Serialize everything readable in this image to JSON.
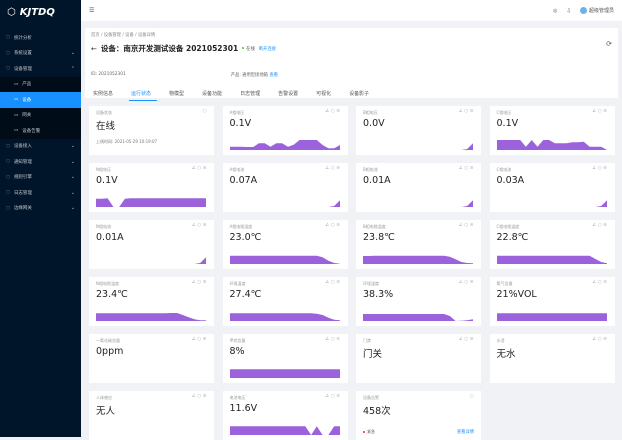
{
  "brand": "KJTDQ",
  "sidebar": {
    "items": [
      {
        "label": "统计分析",
        "icon": "chart-icon"
      },
      {
        "label": "系统设置",
        "icon": "gear-icon",
        "expandable": true
      },
      {
        "label": "设备管理",
        "icon": "device-icon",
        "expanded": true,
        "children": [
          {
            "label": "产品",
            "icon": "monitor-icon"
          },
          {
            "label": "设备",
            "icon": "monitor-icon",
            "active": true
          },
          {
            "label": "网关",
            "icon": "gateway-icon"
          },
          {
            "label": "设备告警",
            "icon": "bell-icon"
          }
        ]
      },
      {
        "label": "设备接入",
        "icon": "plug-icon",
        "expandable": true
      },
      {
        "label": "通知管理",
        "icon": "notify-icon",
        "expandable": true
      },
      {
        "label": "规则引擎",
        "icon": "rule-icon",
        "expandable": true
      },
      {
        "label": "日志管理",
        "icon": "log-icon",
        "expandable": true
      },
      {
        "label": "边缘网关",
        "icon": "edge-icon",
        "expandable": true
      }
    ]
  },
  "topbar": {
    "user": "超级管理员"
  },
  "header": {
    "breadcrumb": [
      "首页",
      "设备管理",
      "设备",
      "设备详情"
    ],
    "title": "设备：南京开发测试设备 2021052301",
    "status": "在线",
    "action": "断开连接",
    "id_label": "ID: 2021052301",
    "product_label": "产品: 通用型接地箱",
    "product_link": "查看",
    "tabs": [
      "实例信息",
      "运行状态",
      "物模型",
      "设备功能",
      "日志管理",
      "告警设置",
      "可视化",
      "设备影子"
    ],
    "active_tab": 1
  },
  "accent": "#1890ff",
  "spark_color": "#9b62dc",
  "status_card": {
    "label": "设备状态",
    "value": "在线",
    "sub": "上线时间: 2021-05-29 10:19:07"
  },
  "cards": [
    {
      "label": "A相电压",
      "value": "0.1V",
      "spark": [
        1,
        1,
        1,
        0.9,
        0.9,
        2,
        2,
        1,
        2,
        2,
        1,
        1.6,
        3,
        3,
        3,
        3,
        1.5,
        0.5,
        0.5,
        1.5
      ]
    },
    {
      "label": "B相电压",
      "value": "0.0V",
      "spark": [
        0,
        0,
        0,
        0,
        0,
        0,
        0,
        0,
        0,
        0,
        0,
        0,
        0,
        0,
        0,
        0,
        0,
        0,
        0.3,
        2
      ]
    },
    {
      "label": "C相电压",
      "value": "0.1V",
      "spark": [
        3,
        3,
        3,
        3,
        3,
        1,
        3,
        1,
        3,
        3,
        2,
        2,
        2,
        2.3,
        2.3,
        2.5,
        1,
        1,
        1,
        0
      ]
    },
    {
      "label": "N相电压",
      "value": "0.1V",
      "spark": [
        2.5,
        2.5,
        2.6,
        0,
        0,
        2.5,
        2.6,
        2.6,
        2.6,
        2.6,
        2.6,
        2.6,
        2.6,
        2.6,
        2.6,
        2.6,
        2.6,
        2.6,
        2.6,
        2.6
      ]
    },
    {
      "label": "A相电流",
      "value": "0.07A",
      "spark": [
        0,
        0,
        0,
        0,
        0,
        0,
        0,
        0,
        0,
        0,
        0,
        0,
        0,
        0,
        0,
        0,
        0,
        0,
        0.3,
        2
      ]
    },
    {
      "label": "B相电流",
      "value": "0.01A",
      "spark": [
        0,
        0,
        0,
        0,
        0,
        0,
        0,
        0,
        0,
        0,
        0,
        0,
        0,
        0,
        0,
        0,
        0,
        0,
        0.3,
        2
      ]
    },
    {
      "label": "C相电流",
      "value": "0.03A",
      "spark": [
        0,
        0,
        0,
        0,
        0,
        0,
        0,
        0,
        0,
        0,
        0,
        0,
        0,
        0,
        0,
        0,
        0,
        0,
        0.3,
        2
      ]
    },
    {
      "label": "N相电流",
      "value": "0.01A",
      "spark": [
        0,
        0,
        0,
        0,
        0,
        0,
        0,
        0,
        0,
        0,
        0,
        0,
        0,
        0,
        0,
        0,
        0,
        0,
        0.3,
        2
      ]
    },
    {
      "label": "A相电缆温度",
      "value": "23.0℃",
      "spark": [
        2.5,
        2.5,
        2.5,
        2.5,
        2.5,
        2.5,
        2.5,
        2.5,
        2.5,
        2.5,
        2.5,
        2.5,
        2.5,
        2.5,
        2.5,
        2.5,
        2,
        1,
        0.3,
        0.1
      ]
    },
    {
      "label": "B相电缆温度",
      "value": "23.8℃",
      "spark": [
        2.4,
        2.4,
        2.5,
        2.5,
        2.5,
        2.5,
        2.5,
        2.5,
        2.5,
        2.5,
        2.5,
        2.5,
        2.5,
        2.5,
        2.5,
        2.2,
        1.4,
        0.6,
        0.3,
        0.2
      ]
    },
    {
      "label": "C相电缆温度",
      "value": "22.8℃",
      "spark": [
        2.5,
        2.5,
        2.5,
        2.5,
        2.5,
        2.5,
        2.5,
        2.5,
        2.5,
        2.5,
        2.5,
        2.5,
        2.5,
        2.5,
        2.5,
        2.5,
        2.5,
        1.5,
        0.6,
        0.2
      ]
    },
    {
      "label": "N相电缆温度",
      "value": "23.4℃",
      "spark": [
        2.3,
        2.3,
        2.3,
        2.3,
        2.3,
        2.3,
        2.3,
        2.3,
        2.3,
        2.3,
        2.3,
        2.3,
        2.3,
        2.4,
        2.4,
        1.8,
        1.1,
        0.5,
        0.2,
        0.2
      ]
    },
    {
      "label": "环境温度",
      "value": "27.4℃",
      "spark": [
        2.3,
        2.3,
        2.3,
        2.3,
        2.3,
        2.3,
        2.3,
        2.3,
        2.3,
        2.3,
        2.3,
        2.3,
        2.3,
        2.3,
        2.3,
        2.2,
        1.8,
        1,
        0.4,
        0.2
      ]
    },
    {
      "label": "环境湿度",
      "value": "38.3%",
      "spark": [
        2.1,
        2.1,
        2.1,
        2.1,
        2.1,
        2.1,
        2.1,
        2.1,
        2.1,
        2.1,
        2.1,
        2.1,
        2.1,
        2.1,
        2.1,
        1.5,
        0,
        0.1,
        0.2,
        0.5
      ]
    },
    {
      "label": "氧气含量",
      "value": "21%VOL",
      "spark": [
        2.3,
        2.3,
        2.3,
        2.3,
        2.3,
        2.3,
        2.3,
        2.3,
        2.3,
        2.3,
        2.3,
        2.3,
        2.3,
        2.3,
        2.3,
        2.3,
        2.3,
        2.3,
        2.3,
        2.3
      ]
    },
    {
      "label": "一氧化碳含量",
      "value": "0ppm",
      "spark": []
    },
    {
      "label": "甲烷含量",
      "value": "8%",
      "spark": [
        2.6,
        2.6,
        2.6,
        2.6,
        2.6,
        2.6,
        2.6,
        2.6,
        2.6,
        2.6,
        2.6,
        2.6,
        2.6,
        2.6,
        2.6,
        2.6,
        2.6,
        2.6,
        2.6,
        2.6
      ]
    },
    {
      "label": "门禁",
      "value": "门关",
      "spark": []
    },
    {
      "label": "水浸",
      "value": "无水",
      "spark": []
    },
    {
      "label": "人体感应",
      "value": "无人",
      "spark": []
    },
    {
      "label": "电池电压",
      "value": "11.6V",
      "spark": [
        2.6,
        2.6,
        2.6,
        2.6,
        2.6,
        2.6,
        2.6,
        2.6,
        2.6,
        2.6,
        2.6,
        2.6,
        2.6,
        2.6,
        0,
        2.6,
        0,
        0,
        2.6,
        2.6
      ]
    }
  ],
  "alarm_card": {
    "label": "设备告警",
    "value": "458次",
    "level": "紧急",
    "link": "查看详情"
  }
}
